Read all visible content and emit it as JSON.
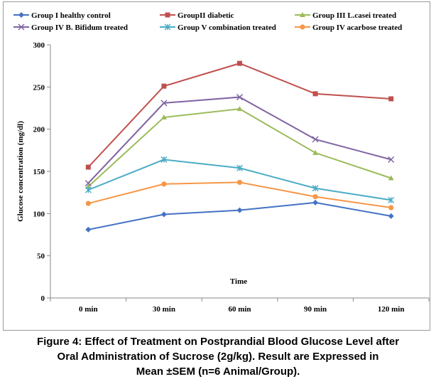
{
  "caption": {
    "line1": "Figure 4: Effect of Treatment on Postprandial Blood Glucose Level after",
    "line2": "Oral Administration of Sucrose (2g/kg). Result are Expressed in",
    "line3": "Mean ±SEM (n=6 Animal/Group)."
  },
  "chart_data": {
    "type": "line",
    "xlabel": "Time",
    "ylabel": "Glucose concentration (mg/dl)",
    "categories": [
      "0 min",
      "30 min",
      "60 min",
      "90 min",
      "120 min"
    ],
    "ylim": [
      0,
      300
    ],
    "yticks": [
      0,
      50,
      100,
      150,
      200,
      250,
      300
    ],
    "grid": false,
    "legend_position": "top",
    "series": [
      {
        "name": "Group I healthy control",
        "color": "#4472C4",
        "marker": "diamond",
        "values": [
          81,
          99,
          104,
          113,
          97
        ]
      },
      {
        "name": "GroupII diabetic",
        "color": "#C0504D",
        "marker": "square",
        "values": [
          155,
          251,
          278,
          242,
          236
        ]
      },
      {
        "name": "Group III L.casei treated",
        "color": "#9BBB59",
        "marker": "triangle",
        "values": [
          132,
          214,
          224,
          172,
          142
        ]
      },
      {
        "name": "Group IV B. Bifidum treated",
        "color": "#8064A2",
        "marker": "x",
        "values": [
          136,
          231,
          238,
          188,
          164
        ]
      },
      {
        "name": "Group V combination treated",
        "color": "#4BACC6",
        "marker": "star",
        "values": [
          128,
          164,
          154,
          130,
          116
        ]
      },
      {
        "name": "Group IV acarbose treated",
        "color": "#F79646",
        "marker": "circle",
        "values": [
          112,
          135,
          137,
          120,
          107
        ]
      }
    ]
  }
}
